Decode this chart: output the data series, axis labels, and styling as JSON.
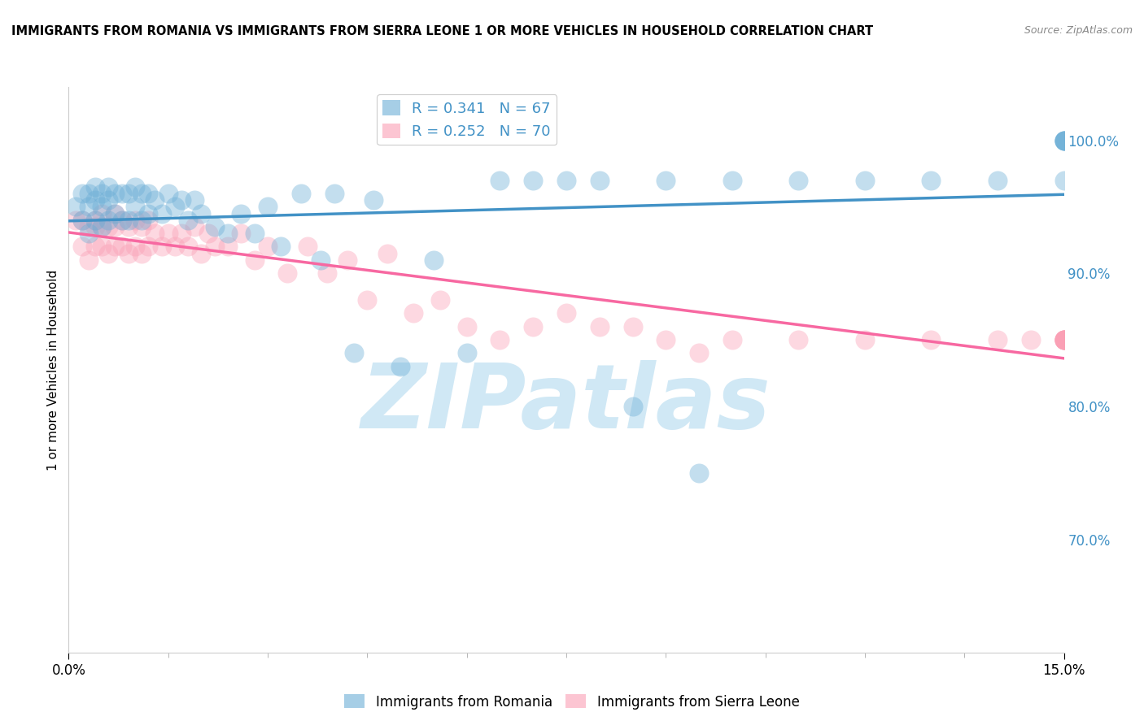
{
  "title": "IMMIGRANTS FROM ROMANIA VS IMMIGRANTS FROM SIERRA LEONE 1 OR MORE VEHICLES IN HOUSEHOLD CORRELATION CHART",
  "source": "Source: ZipAtlas.com",
  "ylabel": "1 or more Vehicles in Household",
  "ytick_labels": [
    "70.0%",
    "80.0%",
    "90.0%",
    "100.0%"
  ],
  "ytick_values": [
    0.7,
    0.8,
    0.9,
    1.0
  ],
  "xlim": [
    0.0,
    0.15
  ],
  "ylim": [
    0.615,
    1.04
  ],
  "legend_romania": "R = 0.341   N = 67",
  "legend_sierraleone": "R = 0.252   N = 70",
  "color_romania": "#6baed6",
  "color_sierraleone": "#fa9fb5",
  "line_color_romania": "#4292c6",
  "line_color_sierraleone": "#f768a1",
  "romania_x": [
    0.001,
    0.002,
    0.002,
    0.003,
    0.003,
    0.003,
    0.004,
    0.004,
    0.004,
    0.005,
    0.005,
    0.005,
    0.006,
    0.006,
    0.006,
    0.007,
    0.007,
    0.008,
    0.008,
    0.009,
    0.009,
    0.01,
    0.01,
    0.011,
    0.011,
    0.012,
    0.012,
    0.013,
    0.014,
    0.015,
    0.016,
    0.017,
    0.018,
    0.019,
    0.02,
    0.022,
    0.024,
    0.026,
    0.028,
    0.03,
    0.032,
    0.035,
    0.038,
    0.04,
    0.043,
    0.046,
    0.05,
    0.055,
    0.06,
    0.065,
    0.07,
    0.075,
    0.08,
    0.085,
    0.09,
    0.095,
    0.1,
    0.11,
    0.12,
    0.13,
    0.14,
    0.15,
    0.15,
    0.15,
    0.15,
    0.15,
    0.15
  ],
  "romania_y": [
    0.95,
    0.94,
    0.96,
    0.93,
    0.95,
    0.96,
    0.94,
    0.955,
    0.965,
    0.935,
    0.95,
    0.96,
    0.94,
    0.955,
    0.965,
    0.945,
    0.96,
    0.94,
    0.96,
    0.94,
    0.96,
    0.95,
    0.965,
    0.94,
    0.96,
    0.945,
    0.96,
    0.955,
    0.945,
    0.96,
    0.95,
    0.955,
    0.94,
    0.955,
    0.945,
    0.935,
    0.93,
    0.945,
    0.93,
    0.95,
    0.92,
    0.96,
    0.91,
    0.96,
    0.84,
    0.955,
    0.83,
    0.91,
    0.84,
    0.97,
    0.97,
    0.97,
    0.97,
    0.8,
    0.97,
    0.75,
    0.97,
    0.97,
    0.97,
    0.97,
    0.97,
    1.0,
    1.0,
    1.0,
    1.0,
    1.0,
    0.97
  ],
  "sierraleone_x": [
    0.001,
    0.002,
    0.002,
    0.003,
    0.003,
    0.004,
    0.004,
    0.004,
    0.005,
    0.005,
    0.005,
    0.006,
    0.006,
    0.007,
    0.007,
    0.007,
    0.008,
    0.008,
    0.009,
    0.009,
    0.01,
    0.01,
    0.011,
    0.011,
    0.012,
    0.012,
    0.013,
    0.014,
    0.015,
    0.016,
    0.017,
    0.018,
    0.019,
    0.02,
    0.021,
    0.022,
    0.024,
    0.026,
    0.028,
    0.03,
    0.033,
    0.036,
    0.039,
    0.042,
    0.045,
    0.048,
    0.052,
    0.056,
    0.06,
    0.065,
    0.07,
    0.075,
    0.08,
    0.085,
    0.09,
    0.095,
    0.1,
    0.11,
    0.12,
    0.13,
    0.14,
    0.145,
    0.15,
    0.15,
    0.15,
    0.15,
    0.15,
    0.15,
    0.15,
    0.15
  ],
  "sierraleone_y": [
    0.94,
    0.92,
    0.94,
    0.91,
    0.935,
    0.92,
    0.935,
    0.94,
    0.92,
    0.935,
    0.945,
    0.915,
    0.935,
    0.92,
    0.935,
    0.945,
    0.92,
    0.94,
    0.915,
    0.935,
    0.92,
    0.94,
    0.915,
    0.935,
    0.92,
    0.94,
    0.93,
    0.92,
    0.93,
    0.92,
    0.93,
    0.92,
    0.935,
    0.915,
    0.93,
    0.92,
    0.92,
    0.93,
    0.91,
    0.92,
    0.9,
    0.92,
    0.9,
    0.91,
    0.88,
    0.915,
    0.87,
    0.88,
    0.86,
    0.85,
    0.86,
    0.87,
    0.86,
    0.86,
    0.85,
    0.84,
    0.85,
    0.85,
    0.85,
    0.85,
    0.85,
    0.85,
    0.85,
    0.85,
    0.85,
    0.85,
    0.85,
    0.85,
    0.85,
    0.85
  ],
  "watermark_text": "ZIPatlas",
  "watermark_color": "#d0e8f5",
  "grid_color": "#cccccc",
  "background_color": "#ffffff",
  "ytick_color": "#4292c6"
}
